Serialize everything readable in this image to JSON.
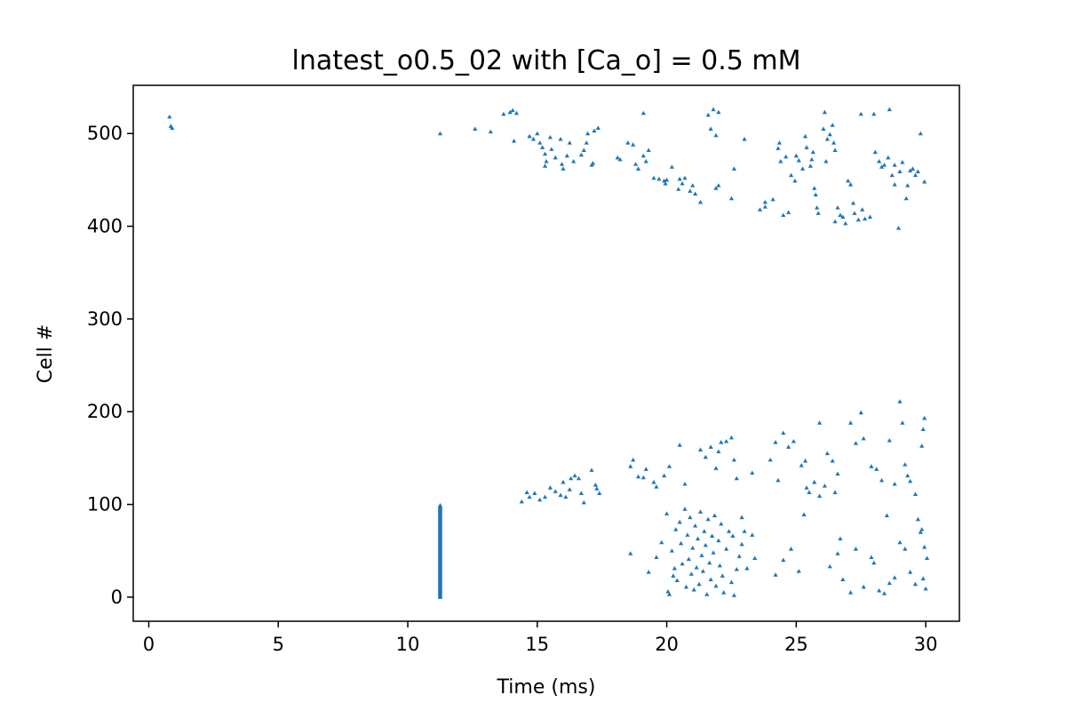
{
  "chart_data": {
    "type": "scatter",
    "title": "lnatest_o0.5_02 with [Ca_o] = 0.5 mM",
    "xlabel": "Time (ms)",
    "ylabel": "Cell #",
    "xlim": [
      -0.6,
      31.3
    ],
    "ylim": [
      -26,
      552
    ],
    "xticks": [
      0,
      5,
      10,
      15,
      20,
      25,
      30
    ],
    "yticks": [
      0,
      100,
      200,
      300,
      400,
      500
    ],
    "grid": false,
    "marker": "triangle-up",
    "series": [
      {
        "color": "#1f77b4",
        "points": [
          [
            0.8,
            518
          ],
          [
            0.85,
            508
          ],
          [
            0.9,
            506
          ],
          [
            11.25,
            500
          ],
          [
            12.6,
            505
          ],
          [
            13.2,
            502
          ],
          [
            13.7,
            521
          ],
          [
            13.95,
            523
          ],
          [
            14.05,
            525
          ],
          [
            14.2,
            522
          ],
          [
            14.1,
            492
          ],
          [
            14.7,
            497
          ],
          [
            14.85,
            494
          ],
          [
            15.0,
            500
          ],
          [
            15.1,
            490
          ],
          [
            15.2,
            485
          ],
          [
            15.3,
            478
          ],
          [
            15.35,
            470
          ],
          [
            15.3,
            465
          ],
          [
            15.5,
            496
          ],
          [
            15.55,
            483
          ],
          [
            15.7,
            474
          ],
          [
            15.9,
            494
          ],
          [
            15.95,
            467
          ],
          [
            16.0,
            462
          ],
          [
            16.15,
            476
          ],
          [
            16.25,
            490
          ],
          [
            16.4,
            470
          ],
          [
            16.7,
            477
          ],
          [
            16.8,
            482
          ],
          [
            16.9,
            490
          ],
          [
            16.95,
            500
          ],
          [
            17.1,
            466
          ],
          [
            17.15,
            468
          ],
          [
            17.2,
            503
          ],
          [
            17.35,
            506
          ],
          [
            18.1,
            474
          ],
          [
            18.2,
            472
          ],
          [
            18.5,
            490
          ],
          [
            18.7,
            488
          ],
          [
            18.8,
            467
          ],
          [
            18.9,
            462
          ],
          [
            19.1,
            476
          ],
          [
            19.2,
            470
          ],
          [
            19.3,
            482
          ],
          [
            19.5,
            452
          ],
          [
            19.7,
            451
          ],
          [
            19.9,
            449
          ],
          [
            19.95,
            446
          ],
          [
            20.0,
            450
          ],
          [
            20.2,
            464
          ],
          [
            20.45,
            440
          ],
          [
            20.5,
            451
          ],
          [
            20.6,
            446
          ],
          [
            20.7,
            452
          ],
          [
            20.9,
            438
          ],
          [
            21.0,
            444
          ],
          [
            21.1,
            435
          ],
          [
            21.3,
            426
          ],
          [
            21.7,
            505
          ],
          [
            21.9,
            441
          ],
          [
            22.0,
            444
          ],
          [
            21.9,
            498
          ],
          [
            22.5,
            430
          ],
          [
            22.6,
            462
          ],
          [
            23.0,
            494
          ],
          [
            23.6,
            418
          ],
          [
            23.8,
            426
          ],
          [
            23.8,
            421
          ],
          [
            24.1,
            429
          ],
          [
            24.3,
            484
          ],
          [
            24.35,
            490
          ],
          [
            24.4,
            470
          ],
          [
            24.5,
            412
          ],
          [
            24.6,
            475
          ],
          [
            24.7,
            415
          ],
          [
            24.8,
            455
          ],
          [
            24.95,
            449
          ],
          [
            25.0,
            476
          ],
          [
            25.1,
            471
          ],
          [
            25.25,
            462
          ],
          [
            25.35,
            497
          ],
          [
            25.4,
            485
          ],
          [
            25.55,
            465
          ],
          [
            25.6,
            472
          ],
          [
            25.65,
            480
          ],
          [
            25.7,
            441
          ],
          [
            25.75,
            434
          ],
          [
            25.8,
            420
          ],
          [
            25.85,
            414
          ],
          [
            26.05,
            505
          ],
          [
            26.15,
            470
          ],
          [
            26.2,
            494
          ],
          [
            26.3,
            499
          ],
          [
            26.4,
            509
          ],
          [
            26.45,
            490
          ],
          [
            26.5,
            482
          ],
          [
            26.5,
            405
          ],
          [
            26.6,
            420
          ],
          [
            26.7,
            412
          ],
          [
            26.8,
            410
          ],
          [
            26.9,
            403
          ],
          [
            27.0,
            449
          ],
          [
            27.1,
            445
          ],
          [
            27.2,
            425
          ],
          [
            27.25,
            414
          ],
          [
            27.4,
            407
          ],
          [
            27.55,
            418
          ],
          [
            27.65,
            408
          ],
          [
            27.85,
            410
          ],
          [
            28.05,
            480
          ],
          [
            28.2,
            470
          ],
          [
            28.3,
            464
          ],
          [
            28.4,
            466
          ],
          [
            28.55,
            474
          ],
          [
            28.7,
            455
          ],
          [
            28.8,
            445
          ],
          [
            28.95,
            398
          ],
          [
            29.1,
            469
          ],
          [
            29.25,
            430
          ],
          [
            29.4,
            460
          ],
          [
            29.5,
            462
          ],
          [
            29.6,
            455
          ],
          [
            29.7,
            459
          ],
          [
            29.3,
            444
          ],
          [
            29.95,
            448
          ],
          [
            29.0,
            459
          ],
          [
            28.8,
            466
          ],
          [
            19.1,
            522
          ],
          [
            22.0,
            523
          ],
          [
            21.8,
            526
          ],
          [
            21.6,
            520
          ],
          [
            26.1,
            523
          ],
          [
            27.5,
            521
          ],
          [
            28.0,
            521
          ],
          [
            28.6,
            526
          ],
          [
            29.8,
            500
          ],
          [
            14.4,
            103
          ],
          [
            14.6,
            113
          ],
          [
            14.7,
            108
          ],
          [
            14.9,
            112
          ],
          [
            15.1,
            105
          ],
          [
            15.3,
            108
          ],
          [
            15.5,
            118
          ],
          [
            15.7,
            114
          ],
          [
            15.9,
            110
          ],
          [
            16.0,
            124
          ],
          [
            16.1,
            108
          ],
          [
            16.25,
            116
          ],
          [
            16.3,
            128
          ],
          [
            16.45,
            131
          ],
          [
            16.6,
            128
          ],
          [
            16.7,
            112
          ],
          [
            16.8,
            102
          ],
          [
            17.1,
            137
          ],
          [
            17.25,
            121
          ],
          [
            17.3,
            117
          ],
          [
            17.4,
            112
          ],
          [
            18.6,
            141
          ],
          [
            18.7,
            148
          ],
          [
            18.9,
            130
          ],
          [
            19.1,
            129
          ],
          [
            19.2,
            138
          ],
          [
            19.5,
            124
          ],
          [
            19.6,
            119
          ],
          [
            19.9,
            131
          ],
          [
            20.1,
            141
          ],
          [
            20.5,
            164
          ],
          [
            20.7,
            122
          ],
          [
            21.3,
            159
          ],
          [
            21.5,
            151
          ],
          [
            21.7,
            162
          ],
          [
            21.9,
            139
          ],
          [
            22.0,
            157
          ],
          [
            22.1,
            167
          ],
          [
            22.3,
            168
          ],
          [
            22.5,
            172
          ],
          [
            22.6,
            148
          ],
          [
            22.7,
            128
          ],
          [
            23.3,
            134
          ],
          [
            24.0,
            148
          ],
          [
            24.2,
            167
          ],
          [
            24.3,
            126
          ],
          [
            24.5,
            177
          ],
          [
            24.7,
            162
          ],
          [
            24.9,
            168
          ],
          [
            25.2,
            142
          ],
          [
            25.35,
            147
          ],
          [
            25.4,
            118
          ],
          [
            25.5,
            113
          ],
          [
            25.7,
            124
          ],
          [
            25.9,
            109
          ],
          [
            26.1,
            120
          ],
          [
            26.2,
            155
          ],
          [
            26.4,
            147
          ],
          [
            26.6,
            133
          ],
          [
            27.1,
            188
          ],
          [
            27.3,
            166
          ],
          [
            27.5,
            199
          ],
          [
            27.6,
            171
          ],
          [
            27.9,
            141
          ],
          [
            28.1,
            138
          ],
          [
            28.3,
            126
          ],
          [
            28.6,
            169
          ],
          [
            28.8,
            122
          ],
          [
            29.1,
            188
          ],
          [
            29.2,
            143
          ],
          [
            29.3,
            131
          ],
          [
            29.4,
            125
          ],
          [
            29.6,
            111
          ],
          [
            29.85,
            163
          ],
          [
            29.9,
            181
          ],
          [
            29.95,
            193
          ],
          [
            26.5,
            113
          ],
          [
            25.9,
            188
          ],
          [
            29.0,
            211
          ],
          [
            18.6,
            47
          ],
          [
            19.3,
            27
          ],
          [
            19.6,
            43
          ],
          [
            19.8,
            59
          ],
          [
            20.0,
            90
          ],
          [
            20.05,
            6
          ],
          [
            20.1,
            3
          ],
          [
            20.2,
            50
          ],
          [
            20.25,
            23
          ],
          [
            20.3,
            31
          ],
          [
            20.35,
            73
          ],
          [
            20.4,
            18
          ],
          [
            20.5,
            81
          ],
          [
            20.55,
            58
          ],
          [
            20.6,
            36
          ],
          [
            20.7,
            95
          ],
          [
            20.75,
            11
          ],
          [
            20.8,
            67
          ],
          [
            20.85,
            41
          ],
          [
            20.9,
            86
          ],
          [
            20.95,
            25
          ],
          [
            21.0,
            53
          ],
          [
            21.05,
            8
          ],
          [
            21.1,
            77
          ],
          [
            21.15,
            32
          ],
          [
            21.2,
            63
          ],
          [
            21.25,
            14
          ],
          [
            21.3,
            92
          ],
          [
            21.35,
            45
          ],
          [
            21.4,
            28
          ],
          [
            21.45,
            71
          ],
          [
            21.5,
            56
          ],
          [
            21.55,
            3
          ],
          [
            21.6,
            84
          ],
          [
            21.65,
            37
          ],
          [
            21.7,
            19
          ],
          [
            21.75,
            66
          ],
          [
            21.8,
            48
          ],
          [
            21.85,
            88
          ],
          [
            21.9,
            12
          ],
          [
            22.0,
            61
          ],
          [
            22.05,
            34
          ],
          [
            22.1,
            79
          ],
          [
            22.15,
            23
          ],
          [
            22.2,
            5
          ],
          [
            22.3,
            52
          ],
          [
            22.4,
            71
          ],
          [
            22.5,
            16
          ],
          [
            22.55,
            66
          ],
          [
            22.6,
            2
          ],
          [
            22.7,
            30
          ],
          [
            22.8,
            44
          ],
          [
            22.9,
            57
          ],
          [
            23.0,
            71
          ],
          [
            23.1,
            31
          ],
          [
            24.2,
            24
          ],
          [
            24.5,
            40
          ],
          [
            24.8,
            52
          ],
          [
            25.1,
            28
          ],
          [
            25.3,
            89
          ],
          [
            26.3,
            33
          ],
          [
            26.6,
            47
          ],
          [
            26.7,
            63
          ],
          [
            26.8,
            19
          ],
          [
            27.1,
            5
          ],
          [
            27.3,
            52
          ],
          [
            27.6,
            11
          ],
          [
            27.9,
            43
          ],
          [
            28.0,
            37
          ],
          [
            28.2,
            7
          ],
          [
            28.4,
            4
          ],
          [
            28.5,
            88
          ],
          [
            28.6,
            15
          ],
          [
            28.8,
            21
          ],
          [
            29.0,
            59
          ],
          [
            29.2,
            52
          ],
          [
            29.4,
            27
          ],
          [
            29.6,
            14
          ],
          [
            29.8,
            70
          ],
          [
            29.9,
            20
          ],
          [
            30.0,
            9
          ],
          [
            30.05,
            42
          ],
          [
            29.85,
            73
          ],
          [
            29.95,
            54
          ],
          [
            29.7,
            84
          ],
          [
            23.3,
            67
          ],
          [
            23.4,
            42
          ],
          [
            22.9,
            86
          ]
        ]
      },
      {
        "color": "#1f77b4",
        "column": {
          "x": 11.25,
          "ymin": 0,
          "ymax": 99
        }
      }
    ]
  }
}
